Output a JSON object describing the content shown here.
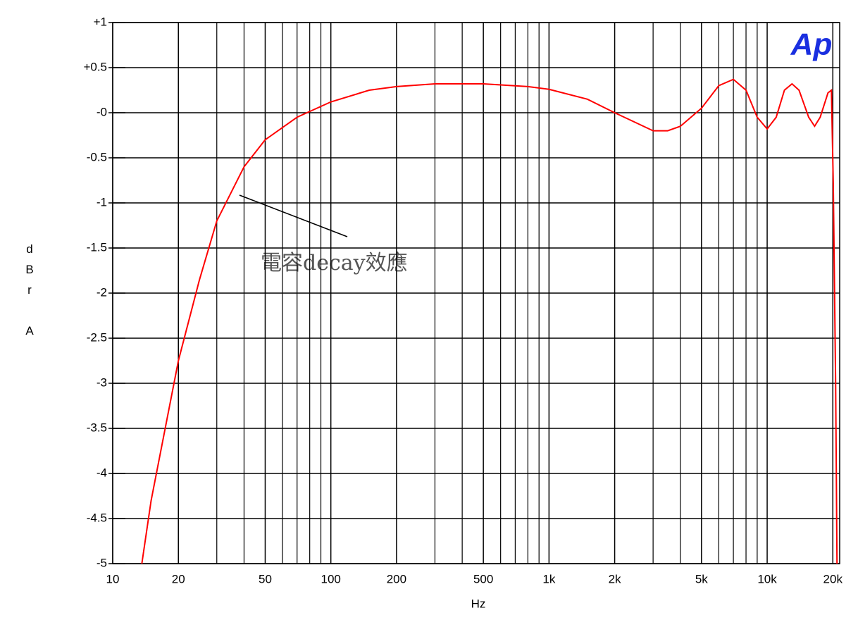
{
  "chart_data": {
    "type": "line",
    "xlabel": "Hz",
    "ylabel": "dBrA",
    "annotation": "電容decay效應",
    "logo": "Ap",
    "xscale": "log",
    "grid": true,
    "xlim": [
      10,
      21500
    ],
    "ylim": [
      -5,
      1
    ],
    "xticks": [
      10,
      20,
      50,
      100,
      200,
      500,
      {
        "value": 1000,
        "label": "1k"
      },
      {
        "value": 2000,
        "label": "2k"
      },
      {
        "value": 5000,
        "label": "5k"
      },
      {
        "value": 10000,
        "label": "10k"
      },
      {
        "value": 20000,
        "label": "20k"
      }
    ],
    "x_minor_grid": [
      30,
      40,
      60,
      70,
      80,
      90,
      300,
      400,
      600,
      700,
      800,
      900,
      3000,
      4000,
      6000,
      7000,
      8000,
      9000
    ],
    "yticks": [
      {
        "value": 1,
        "label": "+1"
      },
      {
        "value": 0.5,
        "label": "+0.5"
      },
      {
        "value": 0,
        "label": "-0"
      },
      -0.5,
      -1,
      -1.5,
      -2,
      -2.5,
      -3,
      -3.5,
      -4,
      -4.5,
      -5
    ],
    "series": [
      {
        "color": "#ff0000",
        "x": [
          13.6,
          15,
          20,
          25,
          30,
          40,
          50,
          70,
          100,
          150,
          200,
          300,
          500,
          800,
          1000,
          1500,
          2000,
          3000,
          3500,
          4000,
          5000,
          6000,
          7000,
          8000,
          9000,
          10000,
          11000,
          12000,
          13000,
          14000,
          15500,
          16500,
          17500,
          19000,
          19700,
          20100,
          20600,
          20900
        ],
        "values": [
          -5,
          -4.3,
          -2.75,
          -1.85,
          -1.2,
          -0.6,
          -0.3,
          -0.05,
          0.12,
          0.25,
          0.29,
          0.32,
          0.32,
          0.29,
          0.26,
          0.15,
          0.0,
          -0.2,
          -0.2,
          -0.15,
          0.05,
          0.3,
          0.37,
          0.25,
          -0.05,
          -0.18,
          -0.05,
          0.25,
          0.32,
          0.25,
          -0.05,
          -0.15,
          -0.05,
          0.22,
          0.25,
          -0.8,
          -3,
          -5
        ]
      }
    ]
  }
}
